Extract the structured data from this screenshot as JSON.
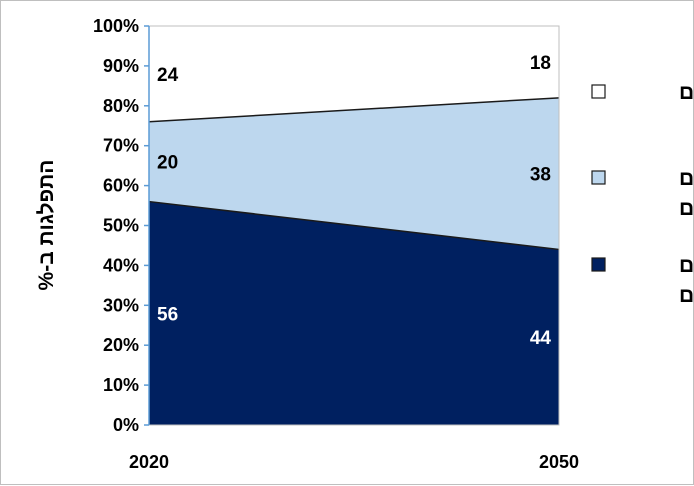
{
  "chart_data": {
    "type": "area",
    "stacked": true,
    "x": [
      "2020",
      "2050"
    ],
    "series": [
      {
        "name": "יהודים אחרים",
        "values": [
          56,
          44
        ],
        "color": "#002060",
        "label_color": "#ffffff",
        "legend_lines": [
          "יהודים",
          "אחרים"
        ]
      },
      {
        "name": "יהודים חרדים",
        "values": [
          20,
          38
        ],
        "color": "#bdd7ee",
        "label_color": "#000000",
        "legend_lines": [
          "יהודים",
          "חרדים"
        ]
      },
      {
        "name": "ערבים",
        "values": [
          24,
          18
        ],
        "color": "#ffffff",
        "label_color": "#000000",
        "legend_lines": [
          "ערבים"
        ]
      }
    ],
    "ylabel": "התפלגות ב-%",
    "ylim": [
      0,
      100
    ],
    "yticks": [
      "0%",
      "10%",
      "20%",
      "30%",
      "40%",
      "50%",
      "60%",
      "70%",
      "80%",
      "90%",
      "100%"
    ],
    "legend_position": "right",
    "grid": false
  }
}
